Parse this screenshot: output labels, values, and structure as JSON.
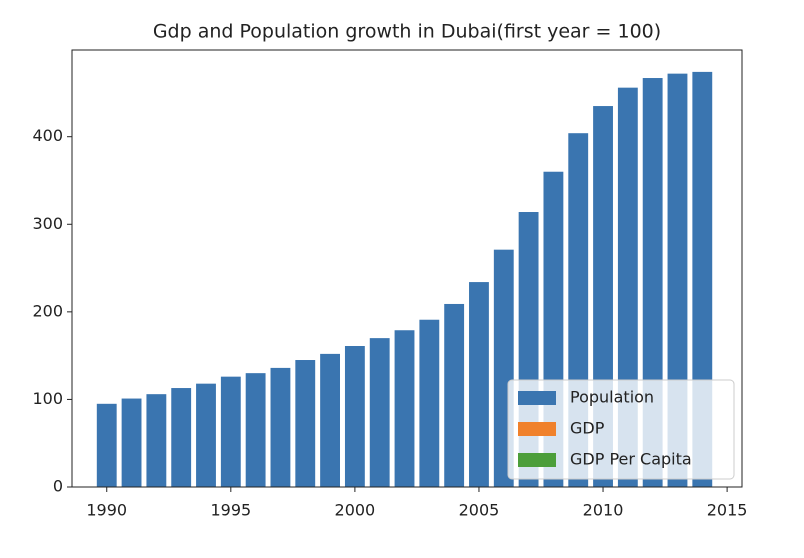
{
  "chart_data": {
    "type": "bar",
    "title": "Gdp and Population growth in Dubai(first year = 100)",
    "x": [
      1990,
      1991,
      1992,
      1993,
      1994,
      1995,
      1996,
      1997,
      1998,
      1999,
      2000,
      2001,
      2002,
      2003,
      2004,
      2005,
      2006,
      2007,
      2008,
      2009,
      2010,
      2011,
      2012,
      2013,
      2014
    ],
    "series": [
      {
        "name": "Population",
        "color": "#3a75b0",
        "values": [
          95,
          101,
          106,
          113,
          118,
          126,
          130,
          136,
          145,
          152,
          161,
          170,
          179,
          191,
          209,
          234,
          271,
          314,
          360,
          404,
          435,
          456,
          467,
          472,
          474
        ]
      },
      {
        "name": "GDP",
        "color": "#f0812b"
      },
      {
        "name": "GDP Per Capita",
        "color": "#4c9e3a"
      }
    ],
    "xlim": [
      1988.6,
      2015.6
    ],
    "xticks": [
      1990,
      1995,
      2000,
      2005,
      2010,
      2015
    ],
    "ylim": [
      0,
      499
    ],
    "yticks": [
      0,
      100,
      200,
      300,
      400
    ],
    "legend": "lower right"
  }
}
